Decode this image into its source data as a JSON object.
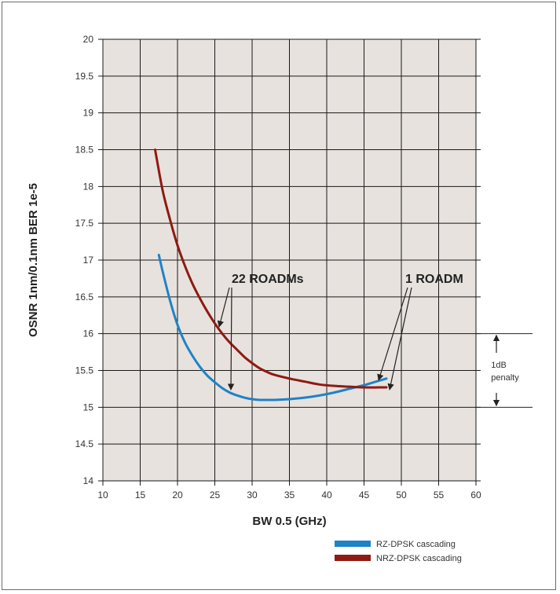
{
  "chart_data": {
    "type": "line",
    "title": "",
    "xlabel": "BW 0.5 (GHz)",
    "ylabel": "OSNR 1nm/0.1nm BER 1e-5",
    "xlim": [
      10,
      60
    ],
    "ylim": [
      14,
      20
    ],
    "x_ticks": [
      "10",
      "15",
      "20",
      "25",
      "30",
      "35",
      "40",
      "45",
      "50",
      "55",
      "60"
    ],
    "y_ticks": [
      "14",
      "14.5",
      "15",
      "15.5",
      "16",
      "16.5",
      "17",
      "17.5",
      "18",
      "18.5",
      "19",
      "19.5",
      "20"
    ],
    "grid": true,
    "legend_position": "bottom-right",
    "colors": {
      "plot_background": "#e7e2dd",
      "grid": "#1a1a1a"
    },
    "series": [
      {
        "name": "RZ-DPSK cascading",
        "color": "#1f82c8",
        "x": [
          17.5,
          18,
          19,
          20,
          21,
          22,
          23,
          24,
          25,
          26,
          27,
          28,
          29,
          30,
          31,
          32,
          33,
          35,
          37,
          39,
          41,
          43,
          45,
          46,
          47,
          48
        ],
        "y": [
          17.07,
          16.85,
          16.45,
          16.12,
          15.88,
          15.7,
          15.55,
          15.43,
          15.34,
          15.26,
          15.2,
          15.16,
          15.13,
          15.11,
          15.1,
          15.1,
          15.1,
          15.11,
          15.13,
          15.16,
          15.2,
          15.25,
          15.3,
          15.33,
          15.36,
          15.39
        ]
      },
      {
        "name": "NRZ-DPSK cascading",
        "color": "#8e1a12",
        "x": [
          17,
          18,
          19,
          20,
          21,
          22,
          23,
          24,
          25,
          26,
          27,
          28,
          29,
          30,
          31,
          32,
          33,
          35,
          37,
          39,
          41,
          43,
          45,
          47,
          48
        ],
        "y": [
          18.5,
          17.95,
          17.55,
          17.2,
          16.92,
          16.68,
          16.48,
          16.3,
          16.14,
          16.0,
          15.88,
          15.78,
          15.68,
          15.6,
          15.53,
          15.48,
          15.44,
          15.39,
          15.35,
          15.31,
          15.29,
          15.28,
          15.27,
          15.27,
          15.27
        ]
      }
    ],
    "annotations": {
      "roadm22_label": "22 ROADMs",
      "roadm1_label": "1 ROADM",
      "penalty_line1": "1dB",
      "penalty_line2": "penalty"
    }
  }
}
